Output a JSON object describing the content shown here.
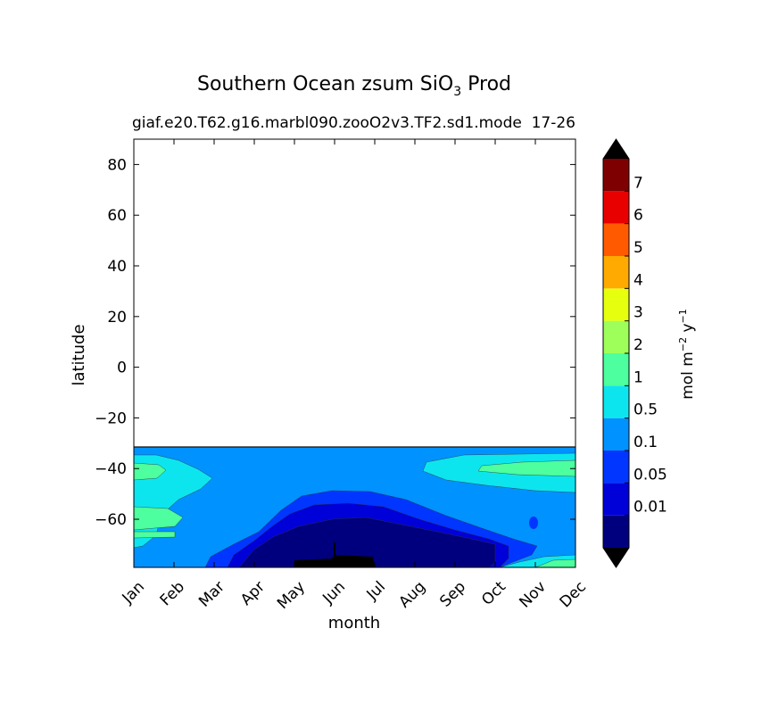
{
  "chart_data": {
    "type": "heatmap",
    "title_main": "Southern Ocean zsum SiO",
    "title_sub": "3",
    "title_suffix": "Prod",
    "subtitle_left": "giaf.e20.T62.g16.marbl090.zooO2v3.TF2.sd1.mode",
    "subtitle_right": "17-26",
    "xlabel": "month",
    "ylabel": "latitude",
    "x_ticks": [
      "Jan",
      "Feb",
      "Mar",
      "Apr",
      "May",
      "Jun",
      "Jul",
      "Aug",
      "Sep",
      "Oct",
      "Nov",
      "Dec"
    ],
    "y_ticks": [
      "80",
      "60",
      "40",
      "20",
      "0",
      "−20",
      "−40",
      "−60"
    ],
    "y_tick_values": [
      80,
      60,
      40,
      20,
      0,
      -20,
      -40,
      -60
    ],
    "ylim": [
      -79,
      90
    ],
    "xlim": [
      0,
      11
    ],
    "data_extent_lat": [
      -79,
      -32
    ],
    "colorbar": {
      "label": "mol m",
      "label_sup1": "−2",
      "label_mid": " y",
      "label_sup2": "−1",
      "tick_labels": [
        "0.01",
        "0.05",
        "0.1",
        "0.5",
        "1",
        "2",
        "3",
        "4",
        "5",
        "6",
        "7"
      ],
      "levels": [
        0,
        0.01,
        0.05,
        0.1,
        0.5,
        1,
        2,
        3,
        4,
        5,
        6,
        7
      ],
      "colors": [
        "#00007f",
        "#0000d8",
        "#0036ff",
        "#0092ff",
        "#0de5ee",
        "#4dff9e",
        "#9eff5a",
        "#e6ff0f",
        "#ffaa00",
        "#ff5a00",
        "#e80000",
        "#7f0000"
      ],
      "under_color": "#000000",
      "over_color": "#000000"
    }
  }
}
